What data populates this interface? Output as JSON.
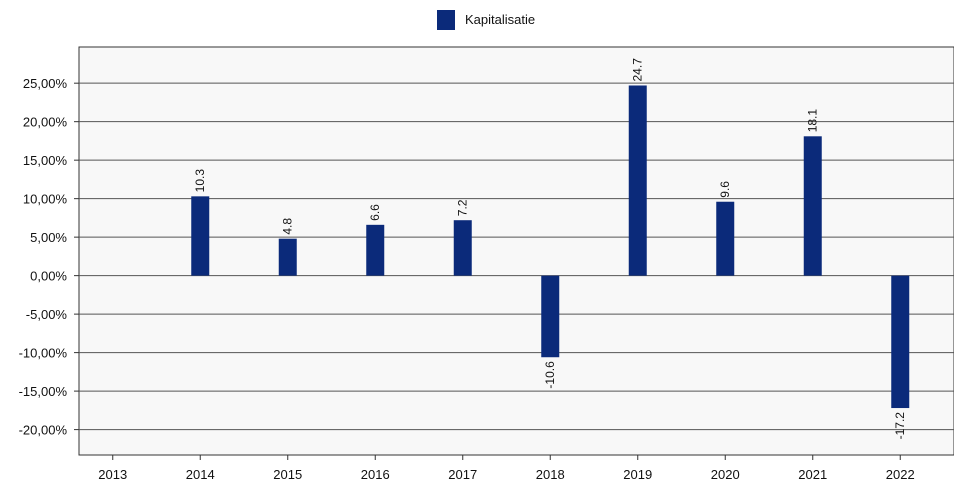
{
  "chart_data": {
    "type": "bar",
    "categories": [
      "2013",
      "2014",
      "2015",
      "2016",
      "2017",
      "2018",
      "2019",
      "2020",
      "2021",
      "2022"
    ],
    "series": [
      {
        "name": "Kapitalisatie",
        "color": "#0b2a7a",
        "values": [
          null,
          10.3,
          4.8,
          6.6,
          7.2,
          -10.6,
          24.7,
          9.6,
          18.1,
          -17.2
        ],
        "labels": [
          "",
          "10.3",
          "4.8",
          "6.6",
          "7.2",
          "-10.6",
          "24.7",
          "9.6",
          "18.1",
          "-17.2"
        ]
      }
    ],
    "yticks": [
      25,
      20,
      15,
      10,
      5,
      0,
      -5,
      -10,
      -15,
      -20
    ],
    "ytick_labels": [
      "25,00%",
      "20,00%",
      "15,00%",
      "10,00%",
      "5,00%",
      "0,00%",
      "-5,00%",
      "-10,00%",
      "-15,00%",
      "-20,00%"
    ],
    "ylim": [
      -23.3,
      29.7
    ],
    "grid": true,
    "legend_position": "top-center",
    "plot_background": "#f8f8f8",
    "title": "",
    "xlabel": "",
    "ylabel": ""
  }
}
